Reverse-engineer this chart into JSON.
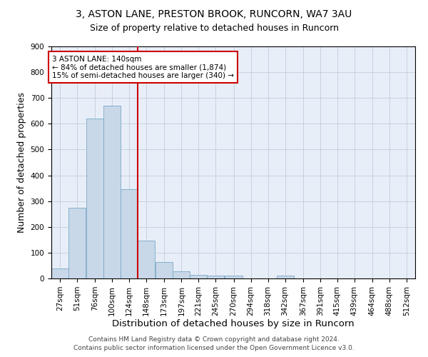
{
  "title1": "3, ASTON LANE, PRESTON BROOK, RUNCORN, WA7 3AU",
  "title2": "Size of property relative to detached houses in Runcorn",
  "xlabel": "Distribution of detached houses by size in Runcorn",
  "ylabel": "Number of detached properties",
  "bar_color": "#c8d8e8",
  "bar_edgecolor": "#7aa8c8",
  "background_color": "#e8eef8",
  "grid_color": "#b8c8d8",
  "annotation_text": "3 ASTON LANE: 140sqm\n← 84% of detached houses are smaller (1,874)\n15% of semi-detached houses are larger (340) →",
  "vline_color": "#cc0000",
  "categories": [
    "27sqm",
    "51sqm",
    "76sqm",
    "100sqm",
    "124sqm",
    "148sqm",
    "173sqm",
    "197sqm",
    "221sqm",
    "245sqm",
    "270sqm",
    "294sqm",
    "318sqm",
    "342sqm",
    "367sqm",
    "391sqm",
    "415sqm",
    "439sqm",
    "464sqm",
    "488sqm",
    "512sqm"
  ],
  "bin_starts": [
    27,
    51,
    76,
    100,
    124,
    148,
    173,
    197,
    221,
    245,
    270,
    294,
    318,
    342,
    367,
    391,
    415,
    439,
    464,
    488,
    512
  ],
  "bin_width": 24,
  "values": [
    40,
    275,
    620,
    670,
    345,
    148,
    65,
    28,
    15,
    12,
    12,
    0,
    0,
    10,
    0,
    0,
    0,
    0,
    0,
    0,
    0
  ],
  "vline_x": 148,
  "ylim": [
    0,
    900
  ],
  "yticks": [
    0,
    100,
    200,
    300,
    400,
    500,
    600,
    700,
    800,
    900
  ],
  "footer1": "Contains HM Land Registry data © Crown copyright and database right 2024.",
  "footer2": "Contains public sector information licensed under the Open Government Licence v3.0.",
  "title_fontsize": 10,
  "subtitle_fontsize": 9,
  "axis_label_fontsize": 9,
  "tick_fontsize": 7.5,
  "footer_fontsize": 6.5
}
